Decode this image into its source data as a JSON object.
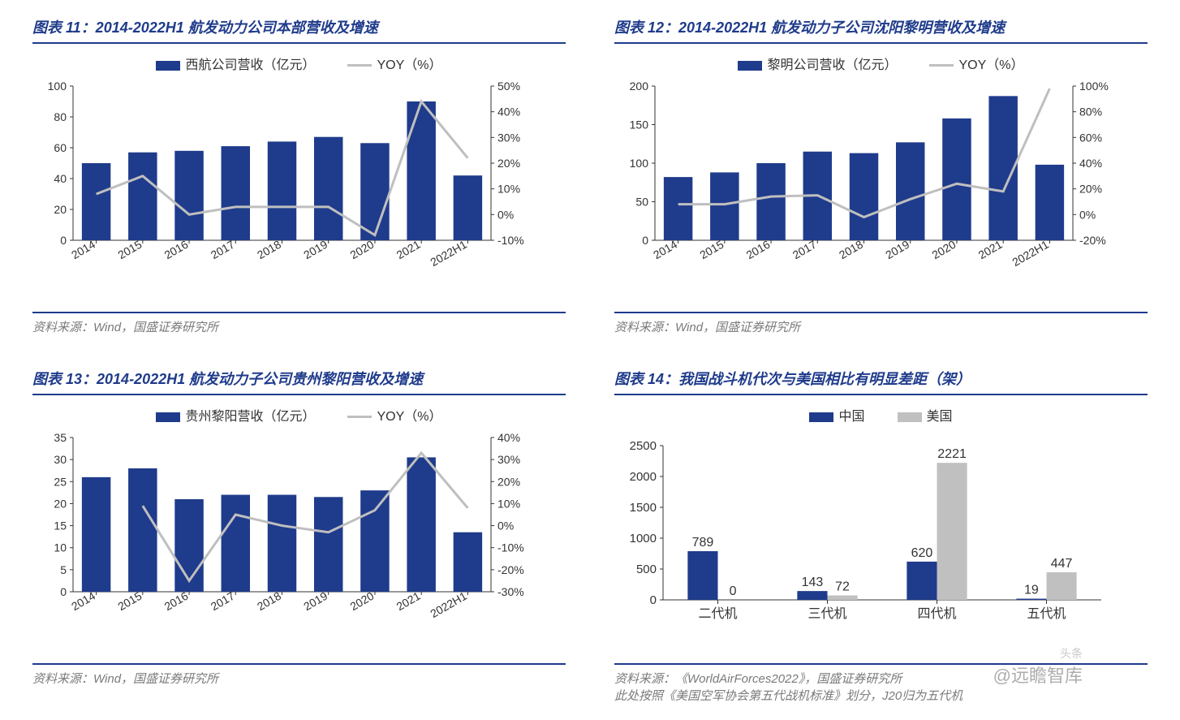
{
  "colors": {
    "bar_primary": "#1f3b8b",
    "bar_secondary": "#c0c0c0",
    "line_color": "#bfbfbf",
    "axis_color": "#333333",
    "grid_color": "#d9d9d9",
    "title_color": "#1f3b8b",
    "source_color": "#7a7a7a",
    "background": "#ffffff"
  },
  "typography": {
    "title_fontsize": 18,
    "axis_fontsize": 14,
    "legend_fontsize": 16,
    "data_label_fontsize": 15,
    "source_fontsize": 15,
    "font_family": "Microsoft YaHei, SimSun, Arial"
  },
  "watermark": {
    "main": "@远瞻智库",
    "sub": "头条"
  },
  "panels": [
    {
      "id": "p11",
      "title": "图表 11：2014-2022H1 航发动力公司本部营收及增速",
      "source": "资料来源：Wind，国盛证券研究所",
      "type": "bar+line",
      "legend": {
        "bar": "西航公司营收（亿元）",
        "line": "YOY（%）"
      },
      "categories": [
        "2014",
        "2015",
        "2016",
        "2017",
        "2018",
        "2019",
        "2020",
        "2021",
        "2022H1"
      ],
      "bar_values": [
        50,
        57,
        58,
        61,
        64,
        67,
        63,
        90,
        42
      ],
      "line_values_pct": [
        8,
        15,
        0,
        3,
        3,
        3,
        -8,
        44,
        22
      ],
      "left_axis": {
        "min": 0,
        "max": 100,
        "step": 20
      },
      "right_axis": {
        "min": -10,
        "max": 50,
        "step": 10,
        "suffix": "%"
      },
      "bar_color": "#1f3b8b",
      "line_color": "#bfbfbf",
      "rotate_xticks": -30
    },
    {
      "id": "p12",
      "title": "图表 12：2014-2022H1 航发动力子公司沈阳黎明营收及增速",
      "source": "资料来源：Wind，国盛证券研究所",
      "type": "bar+line",
      "legend": {
        "bar": "黎明公司营收（亿元）",
        "line": "YOY（%）"
      },
      "categories": [
        "2014",
        "2015",
        "2016",
        "2017",
        "2018",
        "2019",
        "2020",
        "2021",
        "2022H1"
      ],
      "bar_values": [
        82,
        88,
        100,
        115,
        113,
        127,
        158,
        187,
        98
      ],
      "line_values_pct": [
        8,
        8,
        14,
        15,
        -2,
        12,
        24,
        18,
        98
      ],
      "left_axis": {
        "min": 0,
        "max": 200,
        "step": 50
      },
      "right_axis": {
        "min": -20,
        "max": 100,
        "step": 20,
        "suffix": "%"
      },
      "bar_color": "#1f3b8b",
      "line_color": "#bfbfbf",
      "rotate_xticks": -30
    },
    {
      "id": "p13",
      "title": "图表 13：2014-2022H1 航发动力子公司贵州黎阳营收及增速",
      "source": "资料来源：Wind，国盛证券研究所",
      "type": "bar+line",
      "legend": {
        "bar": "贵州黎阳营收（亿元）",
        "line": "YOY（%）"
      },
      "categories": [
        "2014",
        "2015",
        "2016",
        "2017",
        "2018",
        "2019",
        "2020",
        "2021",
        "2022H1"
      ],
      "bar_values": [
        26,
        28,
        21,
        22,
        22,
        21.5,
        23,
        30.5,
        13.5
      ],
      "line_values_pct": [
        null,
        9,
        -25,
        5,
        0,
        -3,
        7,
        33,
        8
      ],
      "left_axis": {
        "min": 0,
        "max": 35,
        "step": 5
      },
      "right_axis": {
        "min": -30,
        "max": 40,
        "step": 10,
        "suffix": "%"
      },
      "bar_color": "#1f3b8b",
      "line_color": "#bfbfbf",
      "rotate_xticks": -30
    },
    {
      "id": "p14",
      "title": "图表 14：我国战斗机代次与美国相比有明显差距（架）",
      "source": "资料来源：《WorldAirForces2022》，国盛证券研究所",
      "note": "此处按照《美国空军协会第五代战机标准》划分，J20归为五代机",
      "type": "grouped-bar",
      "legend": {
        "a": "中国",
        "b": "美国"
      },
      "categories": [
        "二代机",
        "三代机",
        "四代机",
        "五代机"
      ],
      "series_a": [
        789,
        143,
        620,
        19
      ],
      "series_b": [
        0,
        72,
        2221,
        447
      ],
      "left_axis": {
        "min": 0,
        "max": 2500,
        "step": 500
      },
      "color_a": "#1f3b8b",
      "color_b": "#c0c0c0",
      "show_data_labels": true
    }
  ]
}
